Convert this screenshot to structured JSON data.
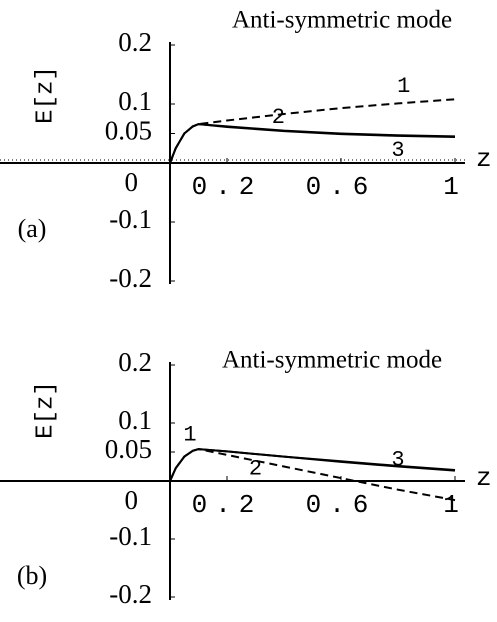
{
  "chart_data": [
    {
      "type": "line",
      "title": "Anti-symmetric mode",
      "panel_label": "(a)",
      "y_label": "E[z]",
      "x_label": "z",
      "xlim": [
        0,
        1
      ],
      "ylim": [
        -0.2,
        0.2
      ],
      "xticks": [
        0.2,
        0.6,
        1
      ],
      "yticks": [
        -0.2,
        -0.1,
        0,
        0.05,
        0.1,
        0.2
      ],
      "x": [
        0,
        0.02,
        0.05,
        0.08,
        0.1,
        0.2,
        0.4,
        0.6,
        0.8,
        1
      ],
      "series": [
        {
          "name": "1",
          "color": "#000000",
          "style": "dashed",
          "values": [
            0,
            0.025,
            0.05,
            0.062,
            0.066,
            0.072,
            0.083,
            0.093,
            0.101,
            0.108
          ]
        },
        {
          "name": "2",
          "color": "#000000",
          "style": "solid",
          "values": [
            0,
            0.025,
            0.05,
            0.062,
            0.066,
            0.062,
            0.055,
            0.05,
            0.047,
            0.045
          ]
        },
        {
          "name": "3",
          "color": "#000000",
          "style": "solid",
          "values": [
            0,
            0.025,
            0.05,
            0.062,
            0.066,
            0.061,
            0.054,
            0.049,
            0.046,
            0.044
          ]
        }
      ]
    },
    {
      "type": "line",
      "title": "Anti-symmetric mode",
      "panel_label": "(b)",
      "y_label": "E[z]",
      "x_label": "z",
      "xlim": [
        0,
        1
      ],
      "ylim": [
        -0.2,
        0.2
      ],
      "xticks": [
        0.2,
        0.6,
        1
      ],
      "yticks": [
        -0.2,
        -0.1,
        0,
        0.05,
        0.1,
        0.2
      ],
      "x": [
        0,
        0.02,
        0.05,
        0.08,
        0.1,
        0.2,
        0.4,
        0.6,
        0.8,
        1
      ],
      "series": [
        {
          "name": "1",
          "color": "#000000",
          "style": "dashed",
          "values": [
            0,
            0.022,
            0.042,
            0.052,
            0.055,
            0.045,
            0.025,
            0.005,
            -0.015,
            -0.033
          ]
        },
        {
          "name": "2",
          "color": "#000000",
          "style": "solid",
          "values": [
            0,
            0.022,
            0.042,
            0.052,
            0.055,
            0.051,
            0.042,
            0.034,
            0.026,
            0.019
          ]
        },
        {
          "name": "3",
          "color": "#000000",
          "style": "solid",
          "values": [
            0,
            0.022,
            0.042,
            0.052,
            0.055,
            0.051,
            0.042,
            0.033,
            0.025,
            0.018
          ]
        }
      ]
    }
  ]
}
